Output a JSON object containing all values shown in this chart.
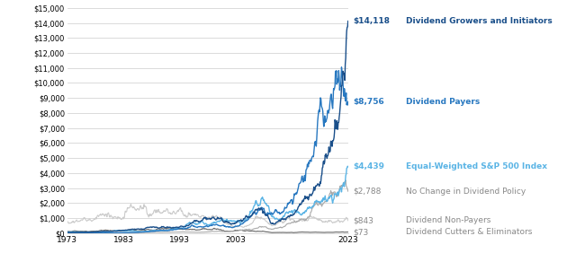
{
  "ylim": [
    0,
    15000
  ],
  "yticks": [
    0,
    1000,
    2000,
    3000,
    4000,
    5000,
    6000,
    7000,
    8000,
    9000,
    10000,
    11000,
    12000,
    13000,
    14000,
    15000
  ],
  "xticks": [
    1973,
    1983,
    1993,
    2003,
    2023
  ],
  "series": [
    {
      "name": "Dividend Growers and Initiators",
      "final_value": "$14,118",
      "final_num": 14118,
      "color": "#1a4f8a",
      "linewidth": 1.0,
      "zorder": 6,
      "annual_return": 0.1375,
      "volatility": 0.155,
      "seed": 11
    },
    {
      "name": "Dividend Payers",
      "final_value": "$8,756",
      "final_num": 8756,
      "color": "#2878c0",
      "linewidth": 1.0,
      "zorder": 5,
      "annual_return": 0.122,
      "volatility": 0.15,
      "seed": 22
    },
    {
      "name": "Equal-Weighted S&P 500 Index",
      "final_value": "$4,439",
      "final_num": 4439,
      "color": "#5ab4e5",
      "linewidth": 1.0,
      "zorder": 4,
      "annual_return": 0.108,
      "volatility": 0.16,
      "seed": 33
    },
    {
      "name": "No Change in Dividend Policy",
      "final_value": "$2,788",
      "final_num": 2788,
      "color": "#aaaaaa",
      "linewidth": 0.8,
      "zorder": 3,
      "annual_return": 0.095,
      "volatility": 0.155,
      "seed": 44
    },
    {
      "name": "Dividend Non-Payers",
      "final_value": "$843",
      "final_num": 843,
      "color": "#cccccc",
      "linewidth": 0.8,
      "zorder": 2,
      "annual_return": 0.048,
      "volatility": 0.2,
      "seed": 55
    },
    {
      "name": "Dividend Cutters & Eliminators",
      "final_value": "$73",
      "final_num": 73,
      "color": "#666666",
      "linewidth": 0.8,
      "zorder": 1,
      "annual_return": -0.02,
      "volatility": 0.22,
      "seed": 66
    }
  ],
  "label_colors": {
    "Dividend Growers and Initiators": "#1a4f8a",
    "Dividend Payers": "#2878c0",
    "Equal-Weighted S&P 500 Index": "#5ab4e5",
    "No Change in Dividend Policy": "#888888",
    "Dividend Non-Payers": "#888888",
    "Dividend Cutters & Eliminators": "#888888"
  },
  "value_colors": {
    "Dividend Growers and Initiators": "#1a4f8a",
    "Dividend Payers": "#2878c0",
    "Equal-Weighted S&P 500 Index": "#5ab4e5",
    "No Change in Dividend Policy": "#888888",
    "Dividend Non-Payers": "#888888",
    "Dividend Cutters & Eliminators": "#888888"
  },
  "background_color": "#ffffff",
  "grid_color": "#cccccc"
}
